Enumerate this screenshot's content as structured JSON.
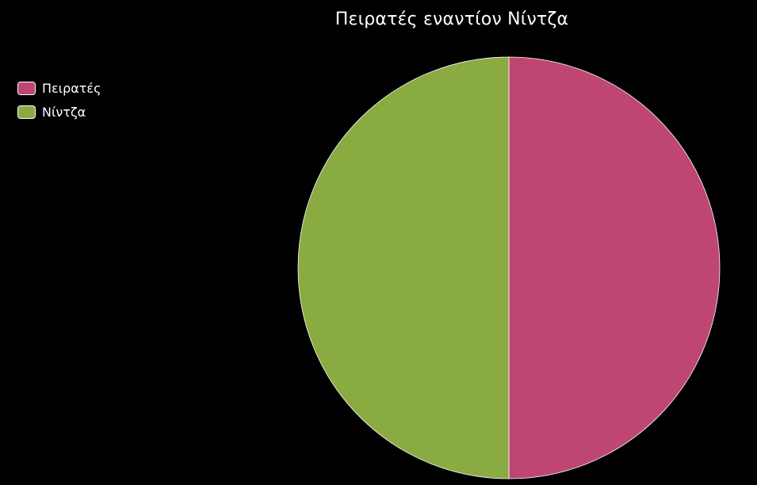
{
  "chart_data": {
    "type": "pie",
    "title": "Πειρατές εναντίον Νίντζα",
    "legend_position": "top-left",
    "categories": [
      "Πειρατές",
      "Νίντζα"
    ],
    "values": [
      50,
      50
    ],
    "colors": [
      "#bf4573",
      "#8aaa42"
    ],
    "slice_border_color": "#ffffff"
  }
}
